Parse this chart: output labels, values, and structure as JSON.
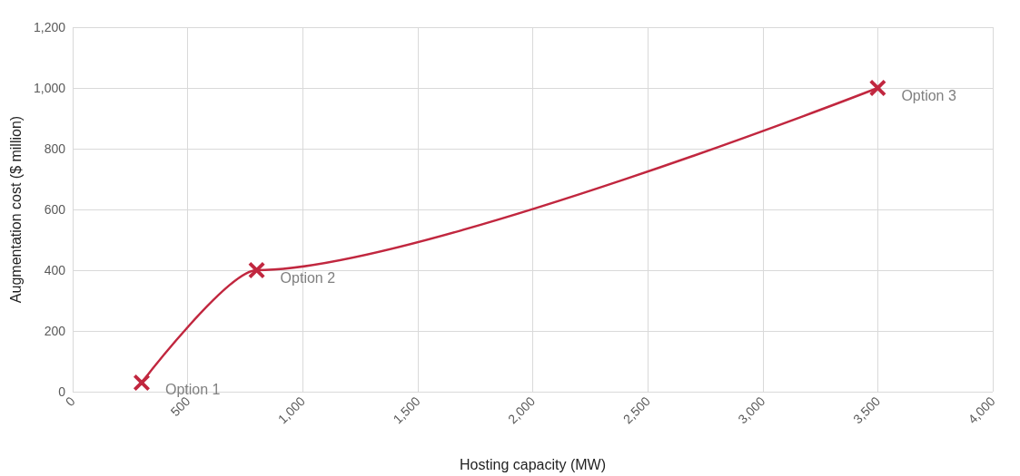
{
  "chart_data": {
    "type": "line",
    "xlabel": "Hosting capacity (MW)",
    "ylabel": "Augmentation cost ($ million)",
    "x": [
      300,
      800,
      3500
    ],
    "series": [
      {
        "color": "#c1273f",
        "values": [
          30,
          400,
          1000
        ]
      }
    ],
    "marker": "cross",
    "line_style": "solid",
    "grid": true,
    "xlim": [
      0,
      4000
    ],
    "xticks": [
      0,
      500,
      {
        "value": 1000,
        "label": "1,000"
      },
      {
        "value": 1500,
        "label": "1,500"
      },
      {
        "value": 2000,
        "label": "2,000"
      },
      {
        "value": 2500,
        "label": "2,500"
      },
      {
        "value": 3000,
        "label": "3,000"
      },
      {
        "value": 3500,
        "label": "3,500"
      },
      {
        "value": 4000,
        "label": "4,000"
      }
    ],
    "ylim": [
      0,
      1200
    ],
    "yticks": [
      0,
      200,
      400,
      600,
      800,
      {
        "value": 1000,
        "label": "1,000"
      },
      {
        "value": 1200,
        "label": "1,200"
      }
    ],
    "annotations": [
      {
        "text": "Option 1",
        "x": 300,
        "y": 30
      },
      {
        "text": "Option 2",
        "x": 800,
        "y": 400
      },
      {
        "text": "Option 3",
        "x": 3500,
        "y": 1000
      }
    ]
  }
}
